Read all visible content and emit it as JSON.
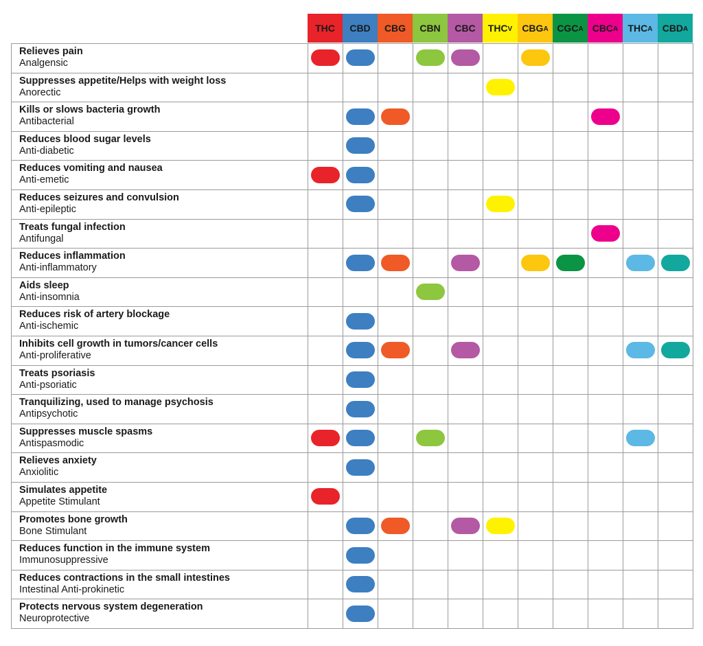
{
  "columns": [
    {
      "base": "THC",
      "sub": "",
      "bg": "#e8232a",
      "fg": "#1a1a1a"
    },
    {
      "base": "CBD",
      "sub": "",
      "bg": "#3d7fc1",
      "fg": "#1a1a1a"
    },
    {
      "base": "CBG",
      "sub": "",
      "bg": "#ef5a26",
      "fg": "#1a1a1a"
    },
    {
      "base": "CBN",
      "sub": "",
      "bg": "#8dc63f",
      "fg": "#1a1a1a"
    },
    {
      "base": "CBC",
      "sub": "",
      "bg": "#b459a3",
      "fg": "#1a1a1a"
    },
    {
      "base": "THC",
      "sub": "V",
      "bg": "#fff200",
      "fg": "#1a1a1a"
    },
    {
      "base": "CBG",
      "sub": "A",
      "bg": "#fdc60f",
      "fg": "#1a1a1a"
    },
    {
      "base": "CGC",
      "sub": "A",
      "bg": "#0b9444",
      "fg": "#1a1a1a"
    },
    {
      "base": "CBC",
      "sub": "A",
      "bg": "#ec008c",
      "fg": "#1a1a1a"
    },
    {
      "base": "THC",
      "sub": "A",
      "bg": "#5cb8e4",
      "fg": "#1a1a1a"
    },
    {
      "base": "CBD",
      "sub": "A",
      "bg": "#13a89e",
      "fg": "#1a1a1a"
    }
  ],
  "rows": [
    {
      "benefit": "Relieves pain",
      "property": "Analgensic",
      "marks": [
        0,
        1,
        3,
        4,
        6
      ]
    },
    {
      "benefit": "Suppresses appetite/Helps with weight loss",
      "property": "Anorectic",
      "marks": [
        5
      ]
    },
    {
      "benefit": "Kills or slows bacteria growth",
      "property": "Antibacterial",
      "marks": [
        1,
        2,
        8
      ]
    },
    {
      "benefit": "Reduces blood sugar levels",
      "property": "Anti-diabetic",
      "marks": [
        1
      ]
    },
    {
      "benefit": "Reduces vomiting and nausea",
      "property": "Anti-emetic",
      "marks": [
        0,
        1
      ]
    },
    {
      "benefit": "Reduces seizures and convulsion",
      "property": "Anti-epileptic",
      "marks": [
        1,
        5
      ]
    },
    {
      "benefit": "Treats fungal infection",
      "property": "Antifungal",
      "marks": [
        8
      ]
    },
    {
      "benefit": "Reduces inflammation",
      "property": "Anti-inflammatory",
      "marks": [
        1,
        2,
        4,
        6,
        7,
        9,
        10
      ]
    },
    {
      "benefit": "Aids sleep",
      "property": "Anti-insomnia",
      "marks": [
        3
      ]
    },
    {
      "benefit": "Reduces risk of artery blockage",
      "property": "Anti-ischemic",
      "marks": [
        1
      ]
    },
    {
      "benefit": "Inhibits cell growth in tumors/cancer cells",
      "property": "Anti-proliferative",
      "marks": [
        1,
        2,
        4,
        9,
        10
      ]
    },
    {
      "benefit": "Treats psoriasis",
      "property": "Anti-psoriatic",
      "marks": [
        1
      ]
    },
    {
      "benefit": "Tranquilizing, used to manage psychosis",
      "property": "Antipsychotic",
      "marks": [
        1
      ]
    },
    {
      "benefit": "Suppresses muscle spasms",
      "property": "Antispasmodic",
      "marks": [
        0,
        1,
        3,
        9
      ]
    },
    {
      "benefit": "Relieves anxiety",
      "property": "Anxiolitic",
      "marks": [
        1
      ]
    },
    {
      "benefit": "Simulates appetite",
      "property": "Appetite Stimulant",
      "marks": [
        0
      ]
    },
    {
      "benefit": "Promotes bone growth",
      "property": "Bone Stimulant",
      "marks": [
        1,
        2,
        4,
        5
      ]
    },
    {
      "benefit": "Reduces function in the immune system",
      "property": "Immunosuppressive",
      "marks": [
        1
      ]
    },
    {
      "benefit": "Reduces contractions in the small intestines",
      "property": "Intestinal Anti-prokinetic",
      "marks": [
        1
      ]
    },
    {
      "benefit": "Protects nervous system degeneration",
      "property": "Neuroprotective",
      "marks": [
        1
      ]
    }
  ]
}
